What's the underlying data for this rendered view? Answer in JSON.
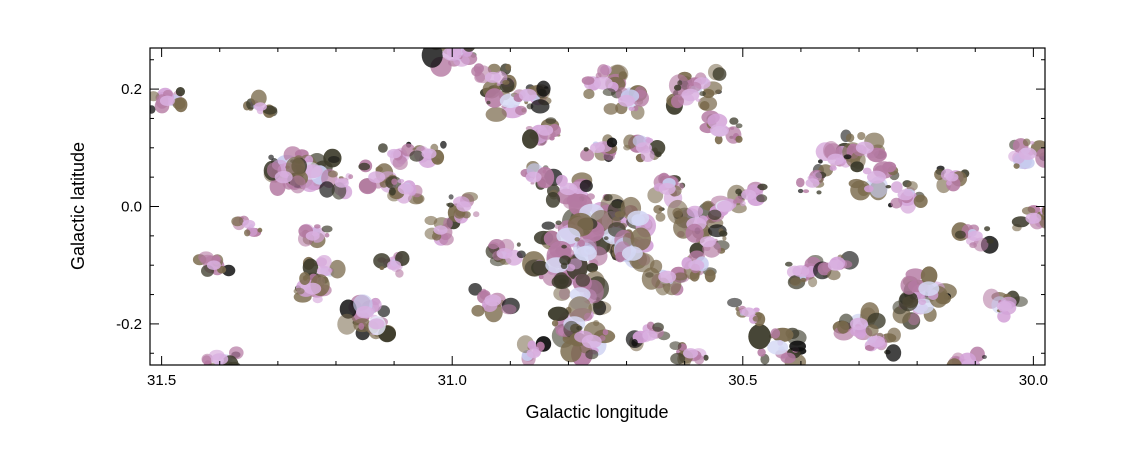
{
  "chart_data": {
    "type": "heatmap",
    "title": "",
    "xlabel": "Galactic longitude",
    "ylabel": "Galactic latitude",
    "xlim": [
      31.52,
      29.98
    ],
    "ylim": [
      -0.27,
      0.27
    ],
    "x_reversed": true,
    "xticks": [
      31.5,
      31.0,
      30.5,
      30.0
    ],
    "xtick_labels": [
      "31.5",
      "31.0",
      "30.5",
      "30.0"
    ],
    "yticks": [
      0.2,
      0.0,
      -0.2
    ],
    "ytick_labels": [
      "0.2",
      "0.0",
      "-0.2"
    ],
    "grid": false,
    "legend": "none",
    "colormap": [
      "#ffffff",
      "#e8ecf8",
      "#c9cdee",
      "#d7a6dc",
      "#bb7fa8",
      "#7d6d50",
      "#333322",
      "#101010"
    ],
    "clumps": [
      {
        "l": 31.49,
        "b": 0.18,
        "v": 0.45
      },
      {
        "l": 31.27,
        "b": 0.07,
        "v": 0.85
      },
      {
        "l": 31.24,
        "b": 0.06,
        "v": 0.7
      },
      {
        "l": 31.29,
        "b": 0.05,
        "v": 0.6
      },
      {
        "l": 31.19,
        "b": 0.04,
        "v": 0.4
      },
      {
        "l": 31.13,
        "b": 0.05,
        "v": 0.55
      },
      {
        "l": 31.1,
        "b": 0.09,
        "v": 0.4
      },
      {
        "l": 31.04,
        "b": 0.09,
        "v": 0.45
      },
      {
        "l": 31.0,
        "b": 0.26,
        "v": 0.7
      },
      {
        "l": 30.9,
        "b": 0.18,
        "v": 0.75
      },
      {
        "l": 30.87,
        "b": 0.19,
        "v": 0.6
      },
      {
        "l": 30.93,
        "b": 0.22,
        "v": 0.5
      },
      {
        "l": 30.84,
        "b": 0.13,
        "v": 0.5
      },
      {
        "l": 30.74,
        "b": 0.21,
        "v": 0.65
      },
      {
        "l": 30.7,
        "b": 0.18,
        "v": 0.55
      },
      {
        "l": 30.57,
        "b": 0.21,
        "v": 0.55
      },
      {
        "l": 30.59,
        "b": 0.19,
        "v": 0.6
      },
      {
        "l": 30.54,
        "b": 0.13,
        "v": 0.65
      },
      {
        "l": 30.67,
        "b": 0.1,
        "v": 0.5
      },
      {
        "l": 30.75,
        "b": 0.1,
        "v": 0.45
      },
      {
        "l": 30.8,
        "b": 0.03,
        "v": 0.6
      },
      {
        "l": 30.86,
        "b": 0.05,
        "v": 0.5
      },
      {
        "l": 30.76,
        "b": -0.01,
        "v": 0.95
      },
      {
        "l": 30.72,
        "b": -0.05,
        "v": 0.95
      },
      {
        "l": 30.8,
        "b": -0.05,
        "v": 0.9
      },
      {
        "l": 30.68,
        "b": -0.02,
        "v": 0.8
      },
      {
        "l": 30.82,
        "b": -0.1,
        "v": 0.85
      },
      {
        "l": 30.77,
        "b": -0.08,
        "v": 0.8
      },
      {
        "l": 30.69,
        "b": -0.08,
        "v": 0.75
      },
      {
        "l": 30.78,
        "b": -0.15,
        "v": 0.75
      },
      {
        "l": 30.79,
        "b": -0.2,
        "v": 0.8
      },
      {
        "l": 30.76,
        "b": -0.23,
        "v": 0.7
      },
      {
        "l": 30.63,
        "b": 0.03,
        "v": 0.55
      },
      {
        "l": 30.58,
        "b": -0.03,
        "v": 0.7
      },
      {
        "l": 30.53,
        "b": 0.0,
        "v": 0.55
      },
      {
        "l": 30.56,
        "b": -0.06,
        "v": 0.5
      },
      {
        "l": 30.63,
        "b": -0.12,
        "v": 0.6
      },
      {
        "l": 30.58,
        "b": -0.1,
        "v": 0.5
      },
      {
        "l": 30.44,
        "b": -0.24,
        "v": 0.75
      },
      {
        "l": 30.4,
        "b": -0.11,
        "v": 0.55
      },
      {
        "l": 30.34,
        "b": -0.1,
        "v": 0.5
      },
      {
        "l": 30.34,
        "b": 0.08,
        "v": 0.55
      },
      {
        "l": 30.29,
        "b": 0.1,
        "v": 0.6
      },
      {
        "l": 30.27,
        "b": 0.05,
        "v": 0.65
      },
      {
        "l": 30.19,
        "b": -0.17,
        "v": 0.8
      },
      {
        "l": 30.18,
        "b": -0.14,
        "v": 0.75
      },
      {
        "l": 30.3,
        "b": -0.2,
        "v": 0.6
      },
      {
        "l": 30.27,
        "b": -0.23,
        "v": 0.55
      },
      {
        "l": 30.01,
        "b": 0.09,
        "v": 0.6
      },
      {
        "l": 30.0,
        "b": -0.02,
        "v": 0.5
      },
      {
        "l": 30.1,
        "b": -0.05,
        "v": 0.45
      },
      {
        "l": 30.05,
        "b": -0.17,
        "v": 0.45
      },
      {
        "l": 30.22,
        "b": 0.02,
        "v": 0.5
      },
      {
        "l": 30.91,
        "b": -0.08,
        "v": 0.5
      },
      {
        "l": 30.93,
        "b": -0.16,
        "v": 0.55
      },
      {
        "l": 31.22,
        "b": -0.11,
        "v": 0.45
      },
      {
        "l": 31.24,
        "b": -0.14,
        "v": 0.55
      },
      {
        "l": 31.15,
        "b": -0.18,
        "v": 0.6
      },
      {
        "l": 31.13,
        "b": -0.2,
        "v": 0.5
      },
      {
        "l": 31.4,
        "b": -0.26,
        "v": 0.55
      },
      {
        "l": 31.08,
        "b": 0.03,
        "v": 0.5
      },
      {
        "l": 31.24,
        "b": -0.05,
        "v": 0.4
      },
      {
        "l": 31.02,
        "b": -0.04,
        "v": 0.4
      },
      {
        "l": 30.98,
        "b": 0.0,
        "v": 0.45
      },
      {
        "l": 30.49,
        "b": 0.02,
        "v": 0.45
      },
      {
        "l": 30.11,
        "b": -0.27,
        "v": 0.5
      },
      {
        "l": 30.59,
        "b": -0.25,
        "v": 0.45
      },
      {
        "l": 31.41,
        "b": -0.1,
        "v": 0.4
      },
      {
        "l": 31.35,
        "b": -0.03,
        "v": 0.35
      },
      {
        "l": 31.33,
        "b": 0.17,
        "v": 0.35
      },
      {
        "l": 31.1,
        "b": -0.1,
        "v": 0.4
      },
      {
        "l": 30.86,
        "b": -0.25,
        "v": 0.4
      },
      {
        "l": 30.66,
        "b": -0.22,
        "v": 0.45
      },
      {
        "l": 30.49,
        "b": -0.18,
        "v": 0.4
      },
      {
        "l": 30.38,
        "b": 0.04,
        "v": 0.4
      },
      {
        "l": 30.14,
        "b": 0.05,
        "v": 0.35
      }
    ]
  }
}
